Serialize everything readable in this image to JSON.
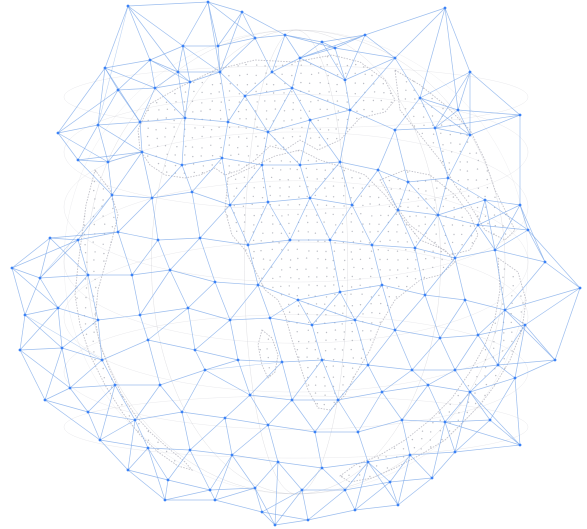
{
  "image": {
    "subject": "network-globe",
    "background_color": "#ffffff",
    "network_line_color": "#7aa7e8",
    "network_node_color": "#3b82f6",
    "land_outline_color": "#b9b9c2",
    "land_dot_color": "#9fa3ad"
  }
}
